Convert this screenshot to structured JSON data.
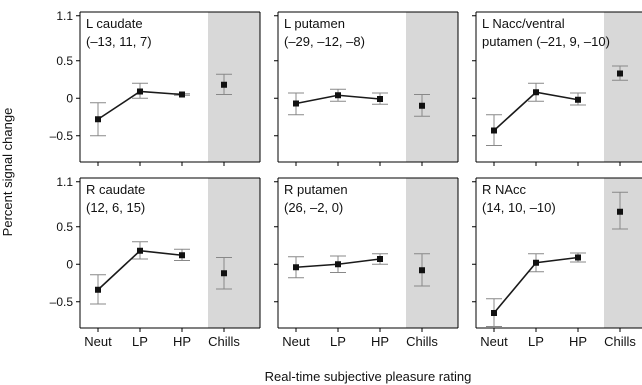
{
  "figure": {
    "ylabel": "Percent signal change",
    "xlabel": "Real-time subjective pleasure rating"
  },
  "colors": {
    "chills_band": "#d8d8d8",
    "line": "#1a1a1a",
    "errorbar": "#888888",
    "chills_tick": "#9a9a9a"
  },
  "chart_data": [
    {
      "type": "line",
      "title": "L caudate",
      "subtitle": "(–13, 11, 7)",
      "categories": [
        "Neut",
        "LP",
        "HP",
        "Chills"
      ],
      "yticks": [
        1.1,
        0.5,
        0,
        -0.5
      ],
      "ytick_labels": [
        "1.1",
        "0.5",
        "0",
        "–0.5"
      ],
      "ylim": [
        -0.85,
        1.15
      ],
      "series": [
        {
          "values": [
            -0.28,
            0.09,
            0.05,
            0.18
          ],
          "err_low": [
            -0.5,
            0.0,
            0.04,
            0.05
          ],
          "err_high": [
            -0.06,
            0.2,
            0.06,
            0.32
          ]
        }
      ]
    },
    {
      "type": "line",
      "title": "L putamen",
      "subtitle": "(–29, –12, –8)",
      "categories": [
        "Neut",
        "LP",
        "HP",
        "Chills"
      ],
      "yticks": [
        1.1,
        0.5,
        0,
        -0.5
      ],
      "ytick_labels": [
        "1.1",
        "0.5",
        "0",
        "–0.5"
      ],
      "ylim": [
        -0.85,
        1.15
      ],
      "series": [
        {
          "values": [
            -0.07,
            0.04,
            -0.01,
            -0.1
          ],
          "err_low": [
            -0.22,
            -0.04,
            -0.08,
            -0.24
          ],
          "err_high": [
            0.07,
            0.12,
            0.07,
            0.05
          ]
        }
      ]
    },
    {
      "type": "line",
      "title": "L Nacc/ventral",
      "subtitle": "putamen (–21, 9, –10)",
      "categories": [
        "Neut",
        "LP",
        "HP",
        "Chills"
      ],
      "yticks": [
        1.1,
        0.5,
        0,
        -0.5
      ],
      "ytick_labels": [
        "1.1",
        "0.5",
        "0",
        "–0.5"
      ],
      "ylim": [
        -0.85,
        1.15
      ],
      "series": [
        {
          "values": [
            -0.43,
            0.08,
            -0.02,
            0.33
          ],
          "err_low": [
            -0.63,
            -0.04,
            -0.09,
            0.24
          ],
          "err_high": [
            -0.22,
            0.2,
            0.07,
            0.43
          ]
        }
      ]
    },
    {
      "type": "line",
      "title": "R caudate",
      "subtitle": "(12, 6, 15)",
      "categories": [
        "Neut",
        "LP",
        "HP",
        "Chills"
      ],
      "yticks": [
        1.1,
        0.5,
        0,
        -0.5
      ],
      "ytick_labels": [
        "1.1",
        "0.5",
        "0",
        "–0.5"
      ],
      "ylim": [
        -0.85,
        1.15
      ],
      "series": [
        {
          "values": [
            -0.34,
            0.18,
            0.12,
            -0.12
          ],
          "err_low": [
            -0.53,
            0.07,
            0.05,
            -0.33
          ],
          "err_high": [
            -0.14,
            0.3,
            0.2,
            0.09
          ]
        }
      ]
    },
    {
      "type": "line",
      "title": "R putamen",
      "subtitle": "(26, –2,  0)",
      "categories": [
        "Neut",
        "LP",
        "HP",
        "Chills"
      ],
      "yticks": [
        1.1,
        0.5,
        0,
        -0.5
      ],
      "ytick_labels": [
        "1.1",
        "0.5",
        "0",
        "–0.5"
      ],
      "ylim": [
        -0.85,
        1.15
      ],
      "series": [
        {
          "values": [
            -0.04,
            0.0,
            0.07,
            -0.08
          ],
          "err_low": [
            -0.18,
            -0.11,
            0.0,
            -0.29
          ],
          "err_high": [
            0.1,
            0.11,
            0.14,
            0.14
          ]
        }
      ]
    },
    {
      "type": "line",
      "title": "R NAcc",
      "subtitle": "(14, 10, –10)",
      "categories": [
        "Neut",
        "LP",
        "HP",
        "Chills"
      ],
      "yticks": [
        1.1,
        0.5,
        0,
        -0.5
      ],
      "ytick_labels": [
        "1.1",
        "0.5",
        "0",
        "–0.5"
      ],
      "ylim": [
        -0.85,
        1.15
      ],
      "series": [
        {
          "values": [
            -0.65,
            0.02,
            0.09,
            0.7
          ],
          "err_low": [
            -0.83,
            -0.1,
            0.03,
            0.47
          ],
          "err_high": [
            -0.46,
            0.14,
            0.15,
            0.96
          ]
        }
      ]
    }
  ]
}
